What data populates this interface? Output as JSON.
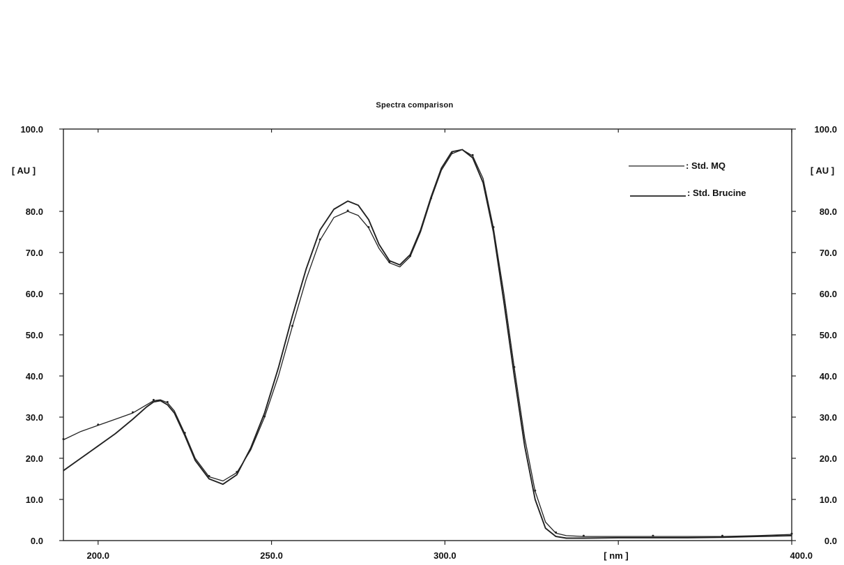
{
  "chart_data": {
    "type": "line",
    "title": "Spectra comparison",
    "xlabel": "[ nm ]",
    "ylabel": "[ AU ]",
    "ylabel_right": "[ AU ]",
    "xlim": [
      190,
      400
    ],
    "ylim": [
      0,
      100
    ],
    "x_ticks": [
      {
        "value": 200,
        "label": "200.0"
      },
      {
        "value": 250,
        "label": "250.0"
      },
      {
        "value": 300,
        "label": "300.0"
      },
      {
        "value": 400,
        "label": "400.0"
      }
    ],
    "y_ticks": [
      {
        "value": 0,
        "label": "0.0"
      },
      {
        "value": 10,
        "label": "10.0"
      },
      {
        "value": 20,
        "label": "20.0"
      },
      {
        "value": 30,
        "label": "30.0"
      },
      {
        "value": 40,
        "label": "40.0"
      },
      {
        "value": 50,
        "label": "50.0"
      },
      {
        "value": 60,
        "label": "60.0"
      },
      {
        "value": 70,
        "label": "70.0"
      },
      {
        "value": 80,
        "label": "80.0"
      },
      {
        "value": 100,
        "label": "100.0"
      }
    ],
    "grid": false,
    "legend_position": "top-right",
    "series": [
      {
        "name": ": Std. MQ",
        "color": "#222222",
        "x": [
          190,
          195,
          200,
          205,
          210,
          214,
          216,
          218,
          220,
          222,
          225,
          228,
          232,
          236,
          240,
          244,
          248,
          252,
          256,
          260,
          264,
          268,
          272,
          275,
          278,
          281,
          284,
          287,
          290,
          293,
          296,
          299,
          302,
          305,
          308,
          311,
          314,
          317,
          320,
          323,
          326,
          329,
          332,
          335,
          340,
          350,
          360,
          370,
          380,
          390,
          400
        ],
        "y": [
          24.5,
          26.5,
          28.0,
          29.5,
          31.0,
          33.0,
          34.0,
          34.2,
          33.5,
          31.5,
          26.0,
          20.0,
          15.5,
          14.5,
          16.5,
          22.0,
          30.0,
          40.0,
          52.0,
          63.5,
          73.0,
          78.5,
          80.0,
          79.0,
          76.0,
          71.0,
          67.5,
          66.5,
          69.0,
          75.0,
          83.0,
          90.0,
          94.0,
          95.0,
          93.5,
          88.0,
          76.0,
          60.0,
          42.0,
          25.0,
          12.0,
          4.5,
          1.8,
          1.2,
          1.0,
          1.0,
          1.0,
          1.0,
          1.0,
          1.2,
          1.5
        ]
      },
      {
        "name": ": Std. Brucine",
        "color": "#222222",
        "x": [
          190,
          195,
          200,
          205,
          210,
          214,
          216,
          218,
          220,
          222,
          225,
          228,
          232,
          236,
          240,
          244,
          248,
          252,
          256,
          260,
          264,
          268,
          272,
          275,
          278,
          281,
          284,
          287,
          290,
          293,
          296,
          299,
          302,
          305,
          308,
          311,
          314,
          317,
          320,
          323,
          326,
          329,
          332,
          335,
          340,
          350,
          360,
          370,
          380,
          390,
          400
        ],
        "y": [
          17.0,
          20.0,
          23.0,
          26.0,
          29.5,
          32.5,
          33.7,
          34.0,
          33.0,
          31.0,
          25.5,
          19.5,
          15.0,
          13.7,
          16.0,
          22.5,
          31.0,
          42.0,
          54.5,
          66.0,
          75.5,
          80.5,
          82.5,
          81.5,
          78.0,
          72.0,
          68.0,
          67.0,
          69.5,
          75.5,
          83.5,
          90.5,
          94.5,
          95.0,
          93.0,
          87.0,
          75.0,
          58.0,
          40.0,
          23.0,
          10.0,
          3.0,
          1.0,
          0.6,
          0.6,
          0.7,
          0.7,
          0.7,
          0.8,
          1.0,
          1.2
        ]
      }
    ]
  }
}
